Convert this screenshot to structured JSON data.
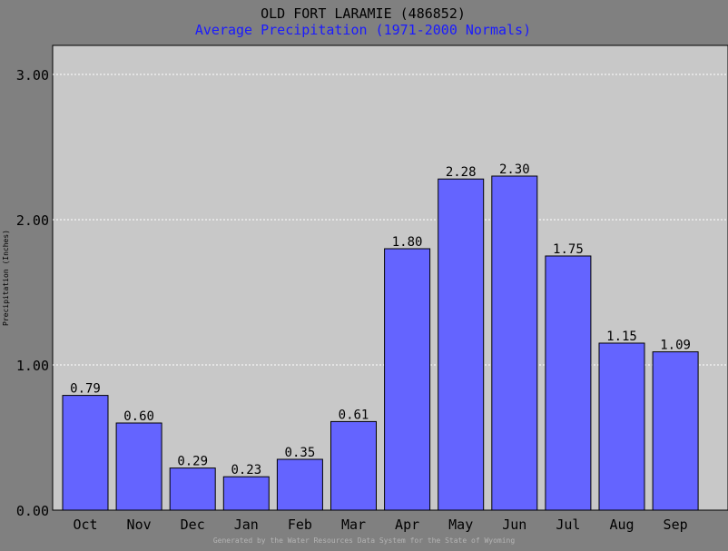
{
  "header": {
    "title": "OLD FORT LARAMIE (486852)",
    "subtitle": "Average Precipitation (1971-2000 Normals)"
  },
  "footer": {
    "credit": "Generated by the Water Resources Data System for the State of Wyoming"
  },
  "colors": {
    "background": "#808080",
    "plot_area": "#c8c8c8",
    "bar_fill": "#6464ff",
    "subtitle": "#1a1aff",
    "grid": "#ffffff"
  },
  "chart_data": {
    "type": "bar",
    "ylabel": "Precipitation (Inches)",
    "ylim": [
      0,
      3.2
    ],
    "yticks": [
      "0.00",
      "1.00",
      "2.00",
      "3.00"
    ],
    "grid": true,
    "categories": [
      "Oct",
      "Nov",
      "Dec",
      "Jan",
      "Feb",
      "Mar",
      "Apr",
      "May",
      "Jun",
      "Jul",
      "Aug",
      "Sep"
    ],
    "values": [
      0.79,
      0.6,
      0.29,
      0.23,
      0.35,
      0.61,
      1.8,
      2.28,
      2.3,
      1.75,
      1.15,
      1.09
    ],
    "data_labels": [
      "0.79",
      "0.60",
      "0.29",
      "0.23",
      "0.35",
      "0.61",
      "1.80",
      "2.28",
      "2.30",
      "1.75",
      "1.15",
      "1.09"
    ]
  }
}
